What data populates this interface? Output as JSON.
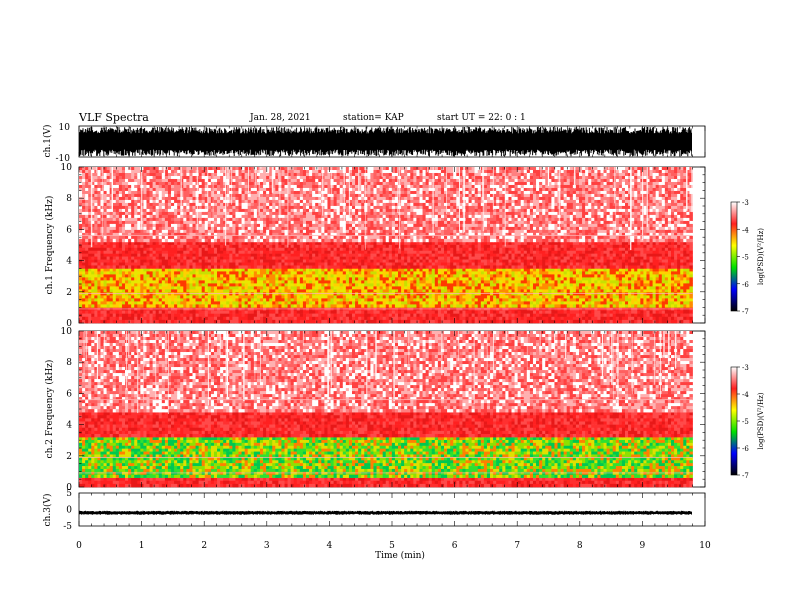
{
  "header": {
    "title": "VLF Spectra",
    "date": "Jan. 28, 2021",
    "station": "station= KAP",
    "start": "start UT =  22: 0  : 1"
  },
  "chart_data": [
    {
      "type": "line",
      "panel": "ch1-waveform",
      "ylabel": "ch.1(V)",
      "ylim": [
        -10,
        10
      ],
      "yticks": [
        "10",
        "-10"
      ],
      "xlim": [
        0,
        10
      ],
      "note": "dense oscillating waveform filling most of the ±10 V range"
    },
    {
      "type": "heatmap",
      "panel": "ch1-spectrogram",
      "ylabel": "ch.1  Frequency (kHz)",
      "ylim": [
        0,
        10
      ],
      "yticks": [
        "0",
        "2",
        "4",
        "6",
        "8",
        "10"
      ],
      "xlim": [
        0,
        10
      ],
      "data_end_min": 9.8,
      "dominant_bands_khz": [
        {
          "range": [
            0,
            1
          ],
          "level": "red"
        },
        {
          "range": [
            1,
            3.5
          ],
          "level": "yellow-green"
        },
        {
          "range": [
            3.5,
            5.2
          ],
          "level": "red"
        },
        {
          "range": [
            5.2,
            10
          ],
          "level": "light-red"
        }
      ],
      "colorbar": {
        "label": "log(PSD)(V²/Hz)",
        "range": [
          -7,
          -3
        ],
        "ticks": [
          "-3",
          "-4",
          "-5",
          "-6",
          "-7"
        ],
        "colors": [
          "#ffffff",
          "#ff0000",
          "#ffff00",
          "#00ff00",
          "#0000ff",
          "#000000"
        ]
      }
    },
    {
      "type": "heatmap",
      "panel": "ch2-spectrogram",
      "ylabel": "ch.2  Frequency (kHz)",
      "ylim": [
        0,
        10
      ],
      "yticks": [
        "0",
        "2",
        "4",
        "6",
        "8",
        "10"
      ],
      "xlim": [
        0,
        10
      ],
      "data_end_min": 9.8,
      "dominant_bands_khz": [
        {
          "range": [
            0,
            0.6
          ],
          "level": "red"
        },
        {
          "range": [
            0.6,
            3.2
          ],
          "level": "green-yellow"
        },
        {
          "range": [
            3.2,
            4.8
          ],
          "level": "red"
        },
        {
          "range": [
            4.8,
            10
          ],
          "level": "light-red"
        }
      ],
      "colorbar": {
        "label": "log(PSD)(V²/Hz)",
        "range": [
          -7,
          -3
        ],
        "ticks": [
          "-3",
          "-4",
          "-5",
          "-6",
          "-7"
        ],
        "colors": [
          "#ffffff",
          "#ff0000",
          "#ffff00",
          "#00ff00",
          "#0000ff",
          "#000000"
        ]
      }
    },
    {
      "type": "line",
      "panel": "ch3-waveform",
      "ylabel": "ch.3(V)",
      "ylim": [
        -5,
        5
      ],
      "yticks": [
        "5",
        "0",
        "-5"
      ],
      "xlim": [
        0,
        10
      ],
      "xlabel": "Time (min)",
      "xticks": [
        "0",
        "1",
        "2",
        "3",
        "4",
        "5",
        "6",
        "7",
        "8",
        "9",
        "10"
      ],
      "note": "narrow band around -1 V"
    }
  ]
}
